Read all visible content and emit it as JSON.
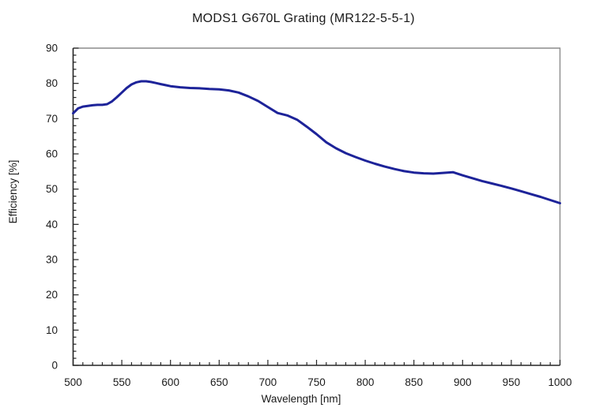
{
  "page": {
    "background_color": "#ffffff",
    "text_color": "#1a1a1a"
  },
  "chart_data": {
    "type": "line",
    "title": "MODS1 G670L Grating (MR122-5-5-1)",
    "xlabel": "Wavelength [nm]",
    "ylabel": "Efficiency [%]",
    "xlim": [
      500,
      1000
    ],
    "ylim": [
      0,
      90
    ],
    "x_major_ticks": [
      500,
      550,
      600,
      650,
      700,
      750,
      800,
      850,
      900,
      950,
      1000
    ],
    "x_minor_step": 10,
    "y_major_ticks": [
      0,
      10,
      20,
      30,
      40,
      50,
      60,
      70,
      80,
      90
    ],
    "y_minor_step": 2,
    "grid": false,
    "legend": "none",
    "series": [
      {
        "name": "grating-efficiency",
        "color": "#1d2399",
        "line_width": 3,
        "x": [
          500,
          505,
          510,
          515,
          520,
          525,
          530,
          535,
          540,
          545,
          550,
          555,
          560,
          565,
          570,
          575,
          580,
          585,
          590,
          595,
          600,
          610,
          620,
          630,
          640,
          650,
          660,
          670,
          680,
          690,
          700,
          710,
          720,
          730,
          740,
          750,
          760,
          770,
          780,
          790,
          800,
          810,
          820,
          830,
          840,
          850,
          860,
          870,
          880,
          890,
          900,
          910,
          920,
          930,
          940,
          950,
          960,
          970,
          980,
          990,
          1000
        ],
        "y": [
          71.5,
          72.9,
          73.4,
          73.6,
          73.8,
          73.9,
          73.9,
          74.1,
          74.9,
          76.1,
          77.4,
          78.7,
          79.7,
          80.3,
          80.6,
          80.6,
          80.4,
          80.1,
          79.8,
          79.5,
          79.2,
          78.9,
          78.7,
          78.6,
          78.4,
          78.3,
          78.0,
          77.4,
          76.3,
          75.0,
          73.3,
          71.6,
          70.9,
          69.7,
          67.7,
          65.6,
          63.3,
          61.6,
          60.2,
          59.1,
          58.1,
          57.2,
          56.4,
          55.7,
          55.1,
          54.7,
          54.5,
          54.4,
          54.6,
          54.8,
          53.9,
          53.1,
          52.3,
          51.6,
          50.9,
          50.2,
          49.4,
          48.6,
          47.8,
          46.9,
          46.0
        ]
      }
    ]
  },
  "style": {
    "axis_color": "#262626",
    "frame_color": "#8c8c8c",
    "tick_major_len": 7,
    "tick_minor_len": 4
  }
}
